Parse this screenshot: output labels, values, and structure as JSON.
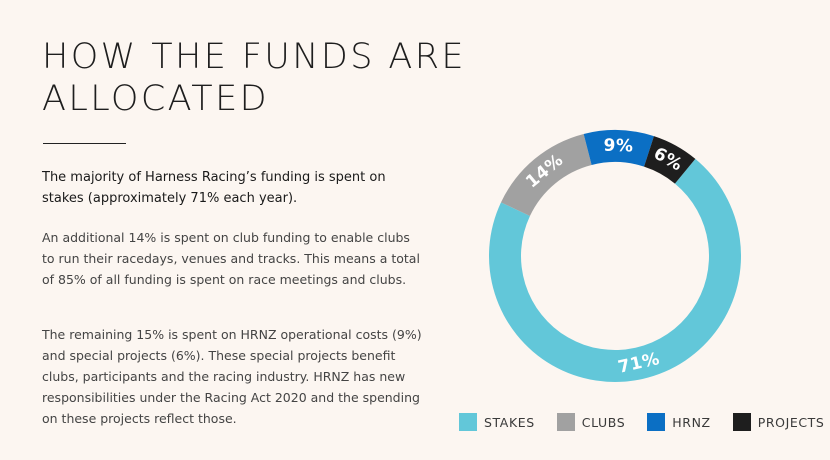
{
  "heading": {
    "line1": "HOW THE FUNDS ARE",
    "line2": "ALLOCATED"
  },
  "lead": "The majority of Harness Racing’s funding is spent on stakes (approximately 71% each year).",
  "paragraphs": [
    "An additional 14% is spent on club funding to enable clubs to run their racedays, venues and tracks. This means a total of 85% of all funding is spent on race meetings and clubs.",
    "The remaining 15% is spent on HRNZ operational costs (9%) and special projects (6%). These special projects benefit clubs, participants and the racing industry. HRNZ has new responsibilities under the Racing Act 2020 and the spending on these projects reflect those."
  ],
  "chart_data": {
    "type": "pie",
    "donut": true,
    "title": "",
    "categories": [
      "STAKES",
      "CLUBS",
      "HRNZ",
      "PROJECTS"
    ],
    "values": [
      71,
      14,
      9,
      6
    ],
    "labels": [
      "71%",
      "14%",
      "9%",
      "6%"
    ],
    "colors": [
      "#62c7d9",
      "#a1a1a1",
      "#0b6fc4",
      "#1e1e1e"
    ],
    "legend_position": "bottom"
  }
}
